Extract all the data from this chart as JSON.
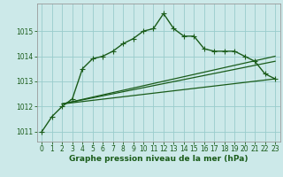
{
  "series1": {
    "x": [
      0,
      1,
      2,
      3,
      4,
      5,
      6,
      7,
      8,
      9,
      10,
      11,
      12,
      13,
      14,
      15,
      16,
      17,
      18,
      19,
      20,
      21,
      22,
      23
    ],
    "y": [
      1011.0,
      1011.6,
      1012.0,
      1012.3,
      1013.5,
      1013.9,
      1014.0,
      1014.2,
      1014.5,
      1014.7,
      1015.0,
      1015.1,
      1015.7,
      1015.1,
      1014.8,
      1014.8,
      1014.3,
      1014.2,
      1014.2,
      1014.2,
      1014.0,
      1013.8,
      1013.3,
      1013.1
    ],
    "color": "#1a5c1a",
    "marker": "+",
    "linewidth": 1.0,
    "markersize": 4,
    "zorder": 4
  },
  "series2": {
    "x": [
      2,
      23
    ],
    "y": [
      1012.1,
      1013.1
    ],
    "color": "#1a5c1a",
    "linewidth": 0.9,
    "zorder": 2
  },
  "series3": {
    "x": [
      2,
      23
    ],
    "y": [
      1012.1,
      1013.8
    ],
    "color": "#1a5c1a",
    "linewidth": 0.9,
    "zorder": 2
  },
  "series4": {
    "x": [
      2,
      23
    ],
    "y": [
      1012.1,
      1014.0
    ],
    "color": "#1a5c1a",
    "linewidth": 0.9,
    "zorder": 2
  },
  "xlim": [
    -0.5,
    23.5
  ],
  "ylim": [
    1010.6,
    1016.1
  ],
  "yticks": [
    1011,
    1012,
    1013,
    1014,
    1015
  ],
  "xticks": [
    0,
    1,
    2,
    3,
    4,
    5,
    6,
    7,
    8,
    9,
    10,
    11,
    12,
    13,
    14,
    15,
    16,
    17,
    18,
    19,
    20,
    21,
    22,
    23
  ],
  "xlabel": "Graphe pression niveau de la mer (hPa)",
  "bg_color": "#cce9e9",
  "grid_color": "#99cccc",
  "text_color": "#1a5c1a",
  "axis_color": "#999999",
  "xlabel_fontsize": 6.5,
  "tick_fontsize": 5.5
}
